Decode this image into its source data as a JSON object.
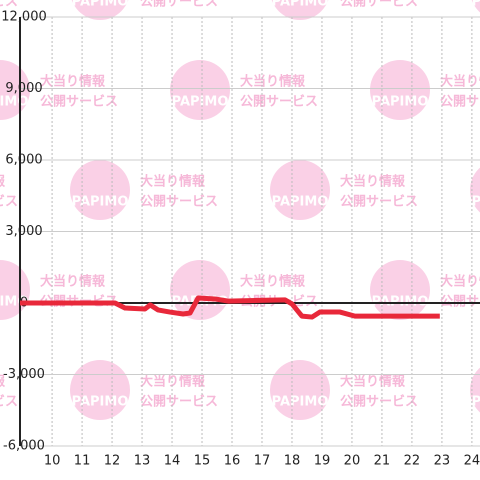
{
  "chart_data": {
    "type": "line",
    "x": [
      8.93,
      12.1,
      12.43,
      13.1,
      13.27,
      13.53,
      13.93,
      14.37,
      14.6,
      14.87,
      15.43,
      15.87,
      17.77,
      18.0,
      18.33,
      18.67,
      18.93,
      19.6,
      20.1,
      22.93
    ],
    "series": [
      {
        "color": "#e8283a",
        "values": [
          0,
          0,
          -210,
          -250,
          -80,
          -290,
          -380,
          -460,
          -420,
          210,
          170,
          80,
          130,
          -40,
          -550,
          -590,
          -380,
          -380,
          -550,
          -550
        ]
      }
    ],
    "xlim": [
      8.93,
      24.27
    ],
    "xticks": [
      10,
      11,
      12,
      13,
      14,
      15,
      16,
      17,
      18,
      19,
      20,
      21,
      22,
      23,
      24
    ],
    "ylim": [
      -6000,
      12000
    ],
    "yticks": [
      {
        "value": -6000,
        "label": "-6,000"
      },
      {
        "value": -3000,
        "label": "-3,000"
      },
      0,
      {
        "value": 3000,
        "label": "3,000"
      },
      {
        "value": 6000,
        "label": "6,000"
      },
      {
        "value": 9000,
        "label": "9,000"
      },
      {
        "value": 12000,
        "label": "12,000"
      }
    ],
    "grid": true
  },
  "watermark": {
    "logo": "PAPIMO",
    "line1": "大当り情報",
    "line2": "公開サービス"
  }
}
